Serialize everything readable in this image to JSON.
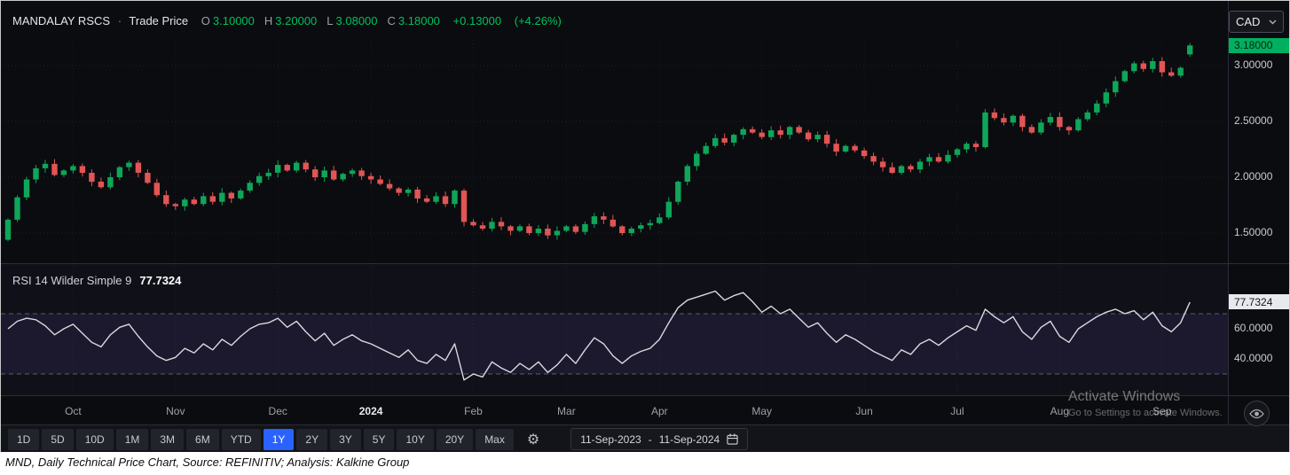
{
  "header": {
    "instrument": "MANDALAY RSCS",
    "separator": "·",
    "series_label": "Trade Price",
    "ohlc_items": [
      {
        "k": "O",
        "v": "3.10000"
      },
      {
        "k": "H",
        "v": "3.20000"
      },
      {
        "k": "L",
        "v": "3.08000"
      },
      {
        "k": "C",
        "v": "3.18000"
      }
    ],
    "change": "+0.13000",
    "change_pct": "(+4.26%)",
    "currency": "CAD"
  },
  "price_axis": {
    "last_badge": "3.18000",
    "ticks": [
      "3.00000",
      "2.50000",
      "2.00000",
      "1.50000"
    ]
  },
  "rsi_pane": {
    "label": "RSI 14 Wilder Simple 9",
    "value": "77.7324",
    "badge": "77.7324",
    "ticks": [
      "60.0000",
      "40.0000"
    ]
  },
  "time_axis": {
    "labels": [
      "Oct",
      "Nov",
      "Dec",
      "2024",
      "Feb",
      "Mar",
      "Apr",
      "May",
      "Jun",
      "Jul",
      "Aug",
      "Sep"
    ],
    "year_label": "2024"
  },
  "toolbar": {
    "ranges": [
      "1D",
      "5D",
      "10D",
      "1M",
      "3M",
      "6M",
      "YTD",
      "1Y",
      "2Y",
      "3Y",
      "5Y",
      "10Y",
      "20Y",
      "Max"
    ],
    "selected": "1Y",
    "gear_icon": "⚙",
    "date_from": "11-Sep-2023",
    "date_sep": "-",
    "date_to": "11-Sep-2024"
  },
  "watermark": {
    "line1": "Activate Windows",
    "line2": "Go to Settings to activate Windows."
  },
  "caption": "MND, Daily Technical Price Chart, Source: REFINITIV; Analysis: Kalkine Group",
  "colors": {
    "up": "#0fa65a",
    "down": "#e25555",
    "rsi_line": "#d8dade",
    "rsi_band": "rgba(136,106,234,0.10)",
    "badge_green": "#00b061",
    "accent_blue": "#2962ff",
    "text_green": "#00c15d"
  },
  "chart_data": [
    {
      "type": "candlestick",
      "title": "MANDALAY RSCS · Trade Price (CAD), daily",
      "period": "11-Sep-2023 to 11-Sep-2024",
      "ylabel": "Price (CAD)",
      "ylim": [
        1.25,
        3.3
      ],
      "yticks": [
        3.0,
        2.5,
        2.0,
        1.5
      ],
      "first_open": 1.44,
      "last_candle": {
        "open": 3.1,
        "high": 3.2,
        "low": 3.08,
        "close": 3.18
      },
      "month_starts": [
        7,
        18,
        29,
        39,
        50,
        60,
        70,
        81,
        92,
        102,
        113,
        124
      ],
      "close": [
        1.62,
        1.82,
        1.98,
        2.08,
        2.12,
        2.02,
        2.06,
        2.1,
        2.04,
        1.96,
        1.91,
        2.0,
        2.09,
        2.13,
        2.04,
        1.95,
        1.84,
        1.76,
        1.74,
        1.8,
        1.76,
        1.83,
        1.78,
        1.86,
        1.81,
        1.88,
        1.95,
        2.01,
        2.04,
        2.11,
        2.06,
        2.13,
        2.07,
        2.0,
        2.06,
        1.98,
        2.03,
        2.06,
        2.01,
        1.98,
        1.94,
        1.9,
        1.86,
        1.89,
        1.81,
        1.78,
        1.83,
        1.76,
        1.88,
        1.6,
        1.57,
        1.54,
        1.6,
        1.56,
        1.52,
        1.56,
        1.5,
        1.54,
        1.48,
        1.52,
        1.56,
        1.51,
        1.58,
        1.65,
        1.62,
        1.56,
        1.5,
        1.54,
        1.57,
        1.59,
        1.64,
        1.78,
        1.96,
        2.1,
        2.21,
        2.28,
        2.35,
        2.31,
        2.38,
        2.43,
        2.4,
        2.36,
        2.42,
        2.38,
        2.45,
        2.4,
        2.34,
        2.38,
        2.3,
        2.23,
        2.28,
        2.24,
        2.19,
        2.14,
        2.09,
        2.04,
        2.1,
        2.07,
        2.14,
        2.18,
        2.14,
        2.2,
        2.25,
        2.3,
        2.27,
        2.58,
        2.53,
        2.49,
        2.55,
        2.45,
        2.4,
        2.49,
        2.54,
        2.45,
        2.42,
        2.52,
        2.58,
        2.66,
        2.76,
        2.86,
        2.95,
        3.02,
        2.97,
        3.04,
        2.94,
        2.91,
        2.98,
        3.18
      ]
    },
    {
      "type": "line",
      "title": "RSI 14 Wilder Simple 9",
      "ylim": [
        15,
        105
      ],
      "yticks": [
        60,
        40
      ],
      "overbought": 70,
      "oversold": 30,
      "last": 77.7324,
      "values": [
        60,
        65,
        67,
        66,
        62,
        56,
        60,
        63,
        57,
        51,
        48,
        56,
        61,
        63,
        55,
        48,
        42,
        39,
        41,
        47,
        44,
        50,
        46,
        53,
        49,
        55,
        60,
        63,
        64,
        67,
        61,
        65,
        58,
        52,
        57,
        49,
        53,
        56,
        52,
        50,
        47,
        44,
        41,
        46,
        39,
        37,
        43,
        39,
        50,
        26,
        30,
        28,
        38,
        34,
        31,
        37,
        33,
        38,
        31,
        36,
        43,
        37,
        46,
        54,
        50,
        42,
        37,
        42,
        45,
        47,
        53,
        64,
        74,
        79,
        81,
        83,
        85,
        79,
        82,
        84,
        78,
        71,
        75,
        70,
        73,
        67,
        61,
        64,
        57,
        51,
        56,
        53,
        49,
        45,
        42,
        39,
        46,
        43,
        50,
        53,
        49,
        54,
        58,
        62,
        59,
        73,
        68,
        64,
        68,
        58,
        53,
        61,
        65,
        55,
        51,
        60,
        64,
        68,
        71,
        73,
        70,
        72,
        66,
        71,
        62,
        58,
        64,
        77.73
      ]
    }
  ]
}
